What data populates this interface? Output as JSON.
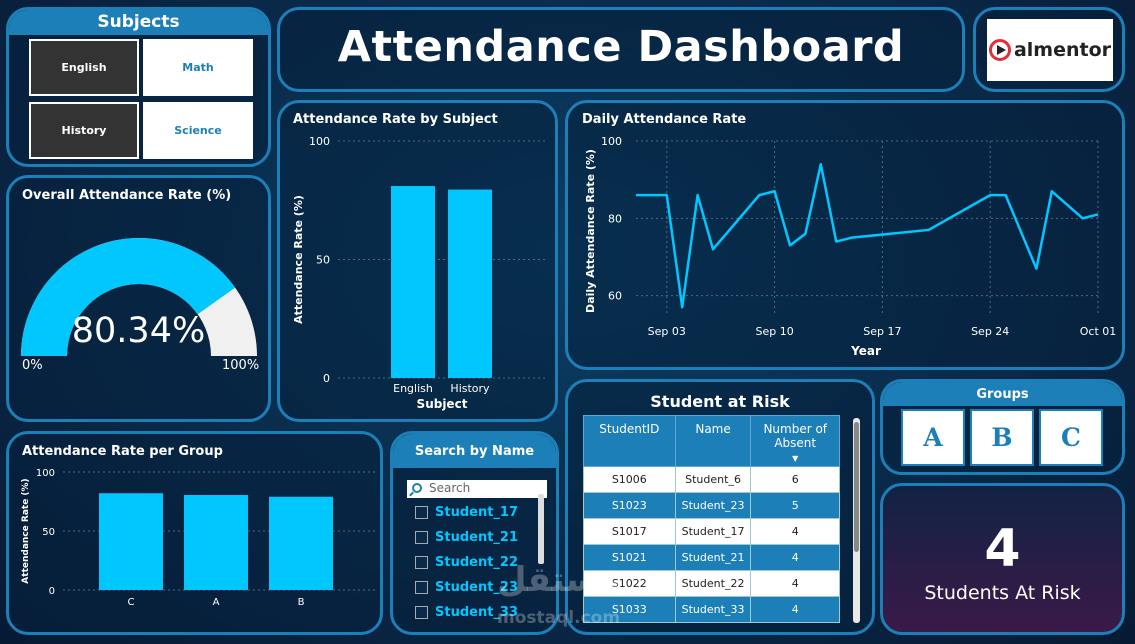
{
  "title": "Attendance Dashboard",
  "logo": {
    "text": "almentor"
  },
  "subjects": {
    "title": "Subjects",
    "buttons": [
      "English",
      "Math",
      "History",
      "Science"
    ]
  },
  "overall": {
    "title": "Overall Attendance Rate (%)",
    "value_label": "80.34%",
    "value": 80.34,
    "min_label": "0%",
    "max_label": "100%",
    "fill_color": "#00c8ff",
    "track_color": "#f0f0f0"
  },
  "search": {
    "title": "Search by Name",
    "placeholder": "Search",
    "items": [
      "Student_17",
      "Student_21",
      "Student_22",
      "Student_23",
      "Student_33"
    ]
  },
  "risk": {
    "title": "Student at Risk",
    "columns": [
      "StudentID",
      "Name",
      "Number of Absent"
    ],
    "rows": [
      [
        "S1006",
        "Student_6",
        "6"
      ],
      [
        "S1023",
        "Student_23",
        "5"
      ],
      [
        "S1017",
        "Student_17",
        "4"
      ],
      [
        "S1021",
        "Student_21",
        "4"
      ],
      [
        "S1022",
        "Student_22",
        "4"
      ],
      [
        "S1033",
        "Student_33",
        "4"
      ]
    ]
  },
  "groups": {
    "title": "Groups",
    "buttons": [
      "A",
      "B",
      "C"
    ]
  },
  "at_risk": {
    "count": "4",
    "label": "Students At Risk"
  },
  "watermark": {
    "arabic": "مستقل",
    "latin": "mostaql.com"
  },
  "chart_data": [
    {
      "type": "bar",
      "title": "Attendance Rate by Subject",
      "categories": [
        "English",
        "History"
      ],
      "values": [
        81,
        79.5
      ],
      "xlabel": "Subject",
      "ylabel": "Attendance Rate (%)",
      "ylim": [
        0,
        100
      ],
      "yticks": [
        0,
        50,
        100
      ],
      "color": "#00c8ff"
    },
    {
      "type": "line",
      "title": "Daily Attendance Rate",
      "x": [
        "Sep 01",
        "Sep 02",
        "Sep 03",
        "Sep 04",
        "Sep 05",
        "Sep 06",
        "Sep 09",
        "Sep 10",
        "Sep 11",
        "Sep 12",
        "Sep 13",
        "Sep 14",
        "Sep 15",
        "Sep 20",
        "Sep 24",
        "Sep 25",
        "Sep 27",
        "Sep 28",
        "Sep 30",
        "Oct 01"
      ],
      "values": [
        86,
        86,
        86,
        57,
        86,
        72,
        86,
        87,
        73,
        76,
        94,
        74,
        75,
        77,
        86,
        86,
        67,
        87,
        80,
        81
      ],
      "xticks": [
        "Sep 03",
        "Sep 10",
        "Sep 17",
        "Sep 24",
        "Oct 01"
      ],
      "xlabel": "Year",
      "ylabel": "Daily Attendance Rate (%)",
      "ylim": [
        55,
        100
      ],
      "yticks": [
        60,
        80,
        100
      ],
      "color": "#00c8ff"
    },
    {
      "type": "bar",
      "title": "Attendance Rate per Group",
      "categories": [
        "C",
        "A",
        "B"
      ],
      "values": [
        82,
        80.5,
        79
      ],
      "xlabel": "",
      "ylabel": "Attendance Rate (%)",
      "ylim": [
        0,
        100
      ],
      "yticks": [
        0,
        50,
        100
      ],
      "color": "#00c8ff"
    }
  ]
}
